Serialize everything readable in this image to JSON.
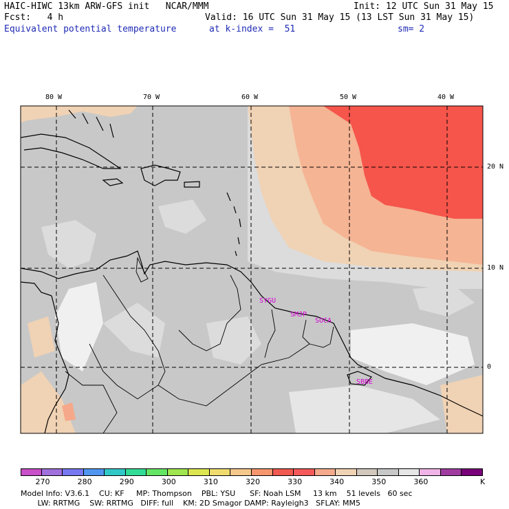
{
  "header": {
    "model_line": "HAIC-HIWC 13km ARW-GFS init   NCAR/MMM",
    "init_line": "Init: 12 UTC Sun 31 May 15",
    "fcst_line": "Fcst:   4 h",
    "valid_line": "Valid: 16 UTC Sun 31 May 15 (13 LST Sun 31 May 15)",
    "field_name": "Equivalent potential temperature",
    "level": "at k-index =  51",
    "smoothing": "sm= 2"
  },
  "map": {
    "lon_labels": [
      "80 W",
      "70 W",
      "60 W",
      "50 W",
      "40 W"
    ],
    "lat_labels": [
      "20 N",
      "10 N",
      "0"
    ],
    "stations": [
      "SYGU",
      "SMJP",
      "SOCA",
      "SBBE"
    ],
    "colors": {
      "gray": "#c8c8c8",
      "light_gray": "#dcdcdc",
      "whiteish": "#f0f0f0",
      "peach": "#f0d2b4",
      "salmon": "#f5a98a",
      "red": "#f5554b"
    }
  },
  "colorbar": {
    "labels": [
      "270",
      "280",
      "290",
      "300",
      "310",
      "320",
      "330",
      "340",
      "350",
      "360"
    ],
    "unit": "K",
    "colors": [
      "#c850c8",
      "#a070dc",
      "#7878f0",
      "#5096f0",
      "#32c8c8",
      "#32dc96",
      "#64e664",
      "#a0e650",
      "#dce650",
      "#f0dc6e",
      "#f5c88c",
      "#f5966e",
      "#f05a50",
      "#f55a5a",
      "#f5aa8c",
      "#f0d2b4",
      "#d2c8be",
      "#c8c8c8",
      "#e6e6e6",
      "#f0b4e6",
      "#a03ca0",
      "#780078"
    ]
  },
  "footer": {
    "line1": "Model Info: V3.6.1    CU: KF     MP: Thompson    PBL: YSU      SF: Noah LSM     13 km    51 levels   60 sec",
    "line2": "       LW: RRTMG    SW: RRTMG   DIFF: full    KM: 2D Smagor DAMP: Rayleigh3   SFLAY: MM5"
  }
}
